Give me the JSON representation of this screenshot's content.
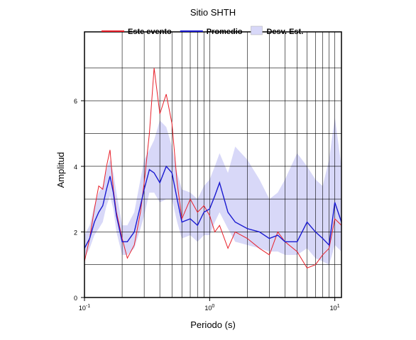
{
  "chart_data": {
    "type": "line",
    "title": "Sitio SHTH",
    "xlabel": "Periodo (s)",
    "ylabel": "Amplitud",
    "log_x": true,
    "grid": true,
    "xlim": [
      0.1,
      11.3
    ],
    "ylim": [
      0,
      8.1
    ],
    "xticks": [
      {
        "value": 0.1,
        "label": "10",
        "exponent": "-1"
      },
      {
        "value": 1,
        "label": "10",
        "exponent": "0"
      },
      {
        "value": 10,
        "label": "10",
        "exponent": "1"
      }
    ],
    "xminor": [
      0.2,
      0.3,
      0.4,
      0.5,
      0.6,
      0.7,
      0.8,
      0.9,
      2,
      3,
      4,
      5,
      6,
      7,
      8,
      9
    ],
    "yticks": [
      0,
      2,
      4,
      6
    ],
    "yminor": [
      1,
      3,
      5,
      7
    ],
    "x": [
      0.1,
      0.11,
      0.12,
      0.13,
      0.14,
      0.15,
      0.16,
      0.17,
      0.18,
      0.2,
      0.22,
      0.25,
      0.28,
      0.3,
      0.33,
      0.36,
      0.4,
      0.45,
      0.5,
      0.55,
      0.6,
      0.7,
      0.8,
      0.9,
      1.0,
      1.1,
      1.2,
      1.4,
      1.6,
      2,
      2.5,
      3,
      3.5,
      4,
      5,
      6,
      7,
      8,
      9,
      10,
      11.3
    ],
    "band": {
      "name": "Desv. Est.",
      "color": "#d8d8f8",
      "upper": [
        1.9,
        2.2,
        2.8,
        3.2,
        3.4,
        3.9,
        4.2,
        3.8,
        3.2,
        2.2,
        2.2,
        2.6,
        3.6,
        4.2,
        4.5,
        4.8,
        5.4,
        5.2,
        4.6,
        3.8,
        3.3,
        3.2,
        3.0,
        3.4,
        3.6,
        4.0,
        4.4,
        3.8,
        4.6,
        4.2,
        3.6,
        3.0,
        3.2,
        3.6,
        4.4,
        4.0,
        3.6,
        3.4,
        4.2,
        5.5,
        4.0
      ],
      "lower": [
        1.2,
        1.5,
        1.9,
        2.1,
        2.3,
        2.8,
        3.1,
        2.7,
        2.0,
        1.3,
        1.3,
        1.5,
        2.1,
        2.5,
        3.2,
        3.2,
        2.9,
        3.0,
        3.0,
        2.3,
        1.8,
        1.9,
        1.7,
        1.9,
        1.9,
        2.3,
        2.6,
        2.1,
        1.7,
        1.6,
        1.5,
        1.4,
        1.4,
        1.3,
        1.3,
        1.5,
        1.2,
        1.1,
        1.0,
        1.6,
        1.4
      ]
    },
    "series": [
      {
        "name": "Este evento",
        "color": "#e8202a",
        "values": [
          1.1,
          1.8,
          2.7,
          3.4,
          3.3,
          4.0,
          4.5,
          3.3,
          2.6,
          1.8,
          1.2,
          1.6,
          2.6,
          3.5,
          5.0,
          7.0,
          5.6,
          6.2,
          5.3,
          3.5,
          2.4,
          3.0,
          2.6,
          2.8,
          2.5,
          2.0,
          2.2,
          1.5,
          2.0,
          1.8,
          1.5,
          1.3,
          2.0,
          1.7,
          1.4,
          0.9,
          1.0,
          1.3,
          1.5,
          2.4,
          2.2
        ]
      },
      {
        "name": "Promedio",
        "color": "#1a1ad0",
        "values": [
          1.5,
          1.8,
          2.3,
          2.6,
          2.8,
          3.3,
          3.7,
          3.2,
          2.5,
          1.7,
          1.7,
          2.0,
          2.8,
          3.3,
          3.9,
          3.8,
          3.5,
          4.0,
          3.8,
          3.0,
          2.3,
          2.4,
          2.2,
          2.6,
          2.7,
          3.1,
          3.5,
          2.6,
          2.3,
          2.1,
          2.0,
          1.8,
          1.9,
          1.7,
          1.7,
          2.3,
          2.0,
          1.8,
          1.6,
          2.9,
          2.3
        ]
      }
    ]
  }
}
